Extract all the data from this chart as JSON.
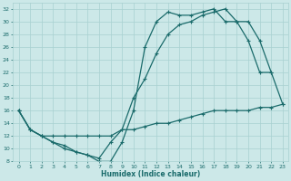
{
  "xlabel": "Humidex (Indice chaleur)",
  "bg_color": "#cce8e8",
  "grid_color": "#a8d0d0",
  "line_color": "#1a6b6b",
  "xlim": [
    -0.5,
    23.5
  ],
  "ylim": [
    8,
    33
  ],
  "xticks": [
    0,
    1,
    2,
    3,
    4,
    5,
    6,
    7,
    8,
    9,
    10,
    11,
    12,
    13,
    14,
    15,
    16,
    17,
    18,
    19,
    20,
    21,
    22,
    23
  ],
  "yticks": [
    8,
    10,
    12,
    14,
    16,
    18,
    20,
    22,
    24,
    26,
    28,
    30,
    32
  ],
  "line1_x": [
    0,
    1,
    2,
    3,
    4,
    5,
    6,
    7,
    8,
    9,
    10,
    11,
    12,
    13,
    14,
    15,
    16,
    17,
    18,
    19,
    20,
    21,
    22
  ],
  "line1_y": [
    16,
    13,
    12,
    11,
    10,
    9.5,
    9,
    8,
    8,
    11,
    16,
    26,
    30,
    31.5,
    31,
    31,
    31.5,
    32,
    30,
    30,
    27,
    22,
    22
  ],
  "line2_x": [
    0,
    1,
    2,
    3,
    4,
    5,
    6,
    7,
    8,
    9,
    10,
    11,
    12,
    13,
    14,
    15,
    16,
    17,
    18,
    19,
    20,
    21,
    22,
    23
  ],
  "line2_y": [
    16,
    13,
    12,
    11,
    10.5,
    9.5,
    9,
    8.5,
    11,
    13,
    18,
    21,
    25,
    28,
    29.5,
    30,
    31,
    31.5,
    32,
    30,
    30,
    27,
    22,
    17
  ],
  "line3_x": [
    0,
    1,
    2,
    3,
    4,
    5,
    6,
    7,
    8,
    9,
    10,
    11,
    12,
    13,
    14,
    15,
    16,
    17,
    18,
    19,
    20,
    21,
    22,
    23
  ],
  "line3_y": [
    16,
    13,
    12,
    12,
    12,
    12,
    12,
    12,
    12,
    13,
    13,
    13.5,
    14,
    14,
    14.5,
    15,
    15.5,
    16,
    16,
    16,
    16,
    16.5,
    16.5,
    17
  ]
}
